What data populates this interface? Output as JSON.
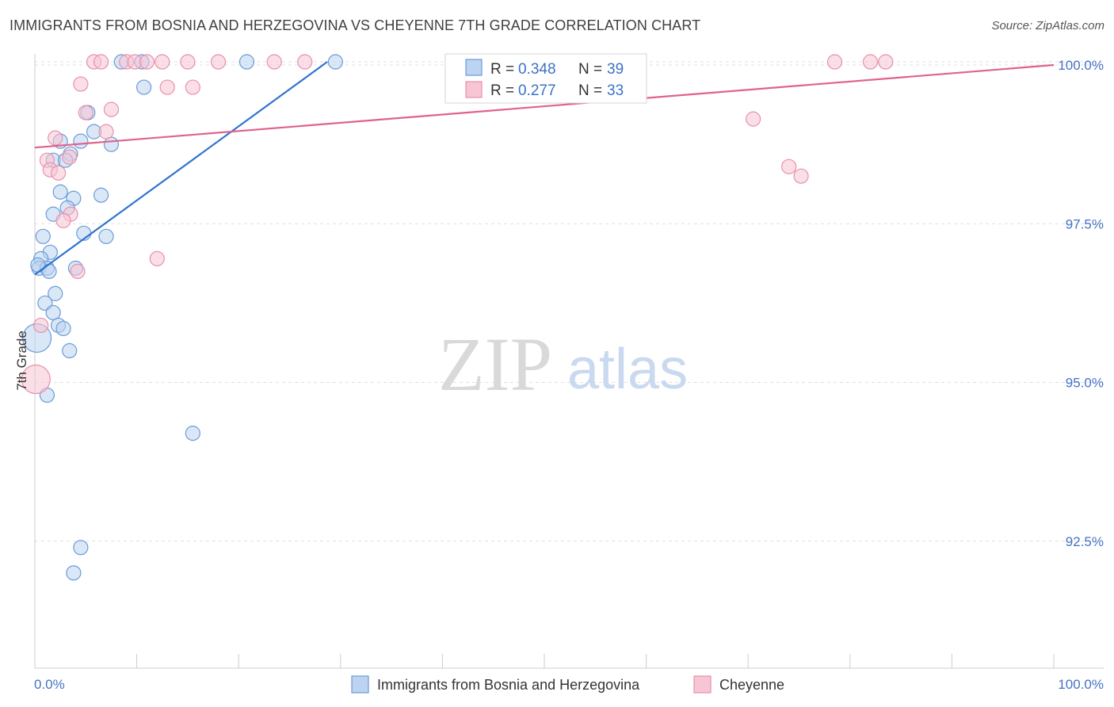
{
  "chart_data": {
    "type": "scatter",
    "title": "IMMIGRANTS FROM BOSNIA AND HERZEGOVINA VS CHEYENNE 7TH GRADE CORRELATION CHART",
    "source": "Source: ZipAtlas.com",
    "xlabel": "",
    "ylabel": "7th Grade",
    "xlim": [
      0,
      100
    ],
    "ylim": [
      90.5,
      100.3
    ],
    "x_tick_labels": {
      "left": "0.0%",
      "right": "100.0%"
    },
    "y_ticks": [
      {
        "value": 100.0,
        "label": "100.0%"
      },
      {
        "value": 97.5,
        "label": "97.5%"
      },
      {
        "value": 95.0,
        "label": "95.0%"
      },
      {
        "value": 92.5,
        "label": "92.5%"
      }
    ],
    "legend": {
      "position": "top-center",
      "entries": [
        {
          "r_label": "R = ",
          "r_value": "0.348",
          "n_label": "N = ",
          "n_value": "39"
        },
        {
          "r_label": "R = ",
          "r_value": "0.277",
          "n_label": "N = ",
          "n_value": "33"
        }
      ]
    },
    "watermark": {
      "part1": "ZIP",
      "part2": "atlas"
    },
    "series": [
      {
        "name": "Immigrants from Bosnia and Herzegovina",
        "color": "#6b9bd8",
        "fill": "#bcd3f1",
        "line_color": "#2f74d0",
        "trend": {
          "x0": 0.0,
          "y0": 96.7,
          "x1": 28.7,
          "y1": 100.05
        },
        "points": [
          {
            "x": 8.5,
            "y": 100.05,
            "s": 1
          },
          {
            "x": 10.5,
            "y": 100.05,
            "s": 1
          },
          {
            "x": 20.8,
            "y": 100.05,
            "s": 1
          },
          {
            "x": 29.5,
            "y": 100.05,
            "s": 1
          },
          {
            "x": 10.7,
            "y": 99.65,
            "s": 1
          },
          {
            "x": 5.2,
            "y": 99.25,
            "s": 1
          },
          {
            "x": 5.8,
            "y": 98.95,
            "s": 1
          },
          {
            "x": 2.5,
            "y": 98.8,
            "s": 1
          },
          {
            "x": 4.5,
            "y": 98.8,
            "s": 1
          },
          {
            "x": 3.5,
            "y": 98.6,
            "s": 1
          },
          {
            "x": 1.8,
            "y": 98.5,
            "s": 1
          },
          {
            "x": 3.0,
            "y": 98.5,
            "s": 1
          },
          {
            "x": 2.5,
            "y": 98.0,
            "s": 1
          },
          {
            "x": 3.8,
            "y": 97.9,
            "s": 1
          },
          {
            "x": 6.5,
            "y": 97.95,
            "s": 1
          },
          {
            "x": 3.2,
            "y": 97.75,
            "s": 1
          },
          {
            "x": 1.8,
            "y": 97.65,
            "s": 1
          },
          {
            "x": 0.8,
            "y": 97.3,
            "s": 1
          },
          {
            "x": 4.8,
            "y": 97.35,
            "s": 1
          },
          {
            "x": 7.0,
            "y": 97.3,
            "s": 1
          },
          {
            "x": 1.5,
            "y": 97.05,
            "s": 1
          },
          {
            "x": 0.6,
            "y": 96.95,
            "s": 1
          },
          {
            "x": 0.4,
            "y": 96.8,
            "s": 1
          },
          {
            "x": 1.2,
            "y": 96.8,
            "s": 1
          },
          {
            "x": 1.4,
            "y": 96.75,
            "s": 1
          },
          {
            "x": 4.0,
            "y": 96.8,
            "s": 1
          },
          {
            "x": 2.0,
            "y": 96.4,
            "s": 1
          },
          {
            "x": 1.0,
            "y": 96.25,
            "s": 1
          },
          {
            "x": 1.8,
            "y": 96.1,
            "s": 1
          },
          {
            "x": 2.3,
            "y": 95.9,
            "s": 1
          },
          {
            "x": 2.8,
            "y": 95.85,
            "s": 1
          },
          {
            "x": 0.2,
            "y": 95.7,
            "s": 2
          },
          {
            "x": 3.4,
            "y": 95.5,
            "s": 1
          },
          {
            "x": 1.2,
            "y": 94.8,
            "s": 1
          },
          {
            "x": 15.5,
            "y": 94.2,
            "s": 1
          },
          {
            "x": 4.5,
            "y": 92.4,
            "s": 1
          },
          {
            "x": 3.8,
            "y": 92.0,
            "s": 1
          },
          {
            "x": 7.5,
            "y": 98.75,
            "s": 1
          },
          {
            "x": 0.3,
            "y": 96.85,
            "s": 1
          }
        ]
      },
      {
        "name": "Cheyenne",
        "color": "#e990ab",
        "fill": "#f7c5d4",
        "line_color": "#e0628c",
        "trend": {
          "x0": 0.0,
          "y0": 98.7,
          "x1": 100.0,
          "y1": 100.0
        },
        "points": [
          {
            "x": 5.8,
            "y": 100.05,
            "s": 1
          },
          {
            "x": 6.5,
            "y": 100.05,
            "s": 1
          },
          {
            "x": 9.0,
            "y": 100.05,
            "s": 1
          },
          {
            "x": 9.8,
            "y": 100.05,
            "s": 1
          },
          {
            "x": 11.0,
            "y": 100.05,
            "s": 1
          },
          {
            "x": 12.5,
            "y": 100.05,
            "s": 1
          },
          {
            "x": 15.0,
            "y": 100.05,
            "s": 1
          },
          {
            "x": 18.0,
            "y": 100.05,
            "s": 1
          },
          {
            "x": 23.5,
            "y": 100.05,
            "s": 1
          },
          {
            "x": 26.5,
            "y": 100.05,
            "s": 1
          },
          {
            "x": 78.5,
            "y": 100.05,
            "s": 1
          },
          {
            "x": 82.0,
            "y": 100.05,
            "s": 1
          },
          {
            "x": 83.5,
            "y": 100.05,
            "s": 1
          },
          {
            "x": 4.5,
            "y": 99.7,
            "s": 1
          },
          {
            "x": 13.0,
            "y": 99.65,
            "s": 1
          },
          {
            "x": 15.5,
            "y": 99.65,
            "s": 1
          },
          {
            "x": 7.5,
            "y": 99.3,
            "s": 1
          },
          {
            "x": 5.0,
            "y": 99.25,
            "s": 1
          },
          {
            "x": 70.5,
            "y": 99.15,
            "s": 1
          },
          {
            "x": 7.0,
            "y": 98.95,
            "s": 1
          },
          {
            "x": 2.0,
            "y": 98.85,
            "s": 1
          },
          {
            "x": 1.2,
            "y": 98.5,
            "s": 1
          },
          {
            "x": 3.4,
            "y": 98.55,
            "s": 1
          },
          {
            "x": 1.5,
            "y": 98.35,
            "s": 1
          },
          {
            "x": 2.3,
            "y": 98.3,
            "s": 1
          },
          {
            "x": 74.0,
            "y": 98.4,
            "s": 1
          },
          {
            "x": 75.2,
            "y": 98.25,
            "s": 1
          },
          {
            "x": 3.5,
            "y": 97.65,
            "s": 1
          },
          {
            "x": 2.8,
            "y": 97.55,
            "s": 1
          },
          {
            "x": 12.0,
            "y": 96.95,
            "s": 1
          },
          {
            "x": 4.2,
            "y": 96.75,
            "s": 1
          },
          {
            "x": 0.6,
            "y": 95.9,
            "s": 1
          },
          {
            "x": 0.1,
            "y": 95.05,
            "s": 2
          }
        ]
      }
    ]
  }
}
